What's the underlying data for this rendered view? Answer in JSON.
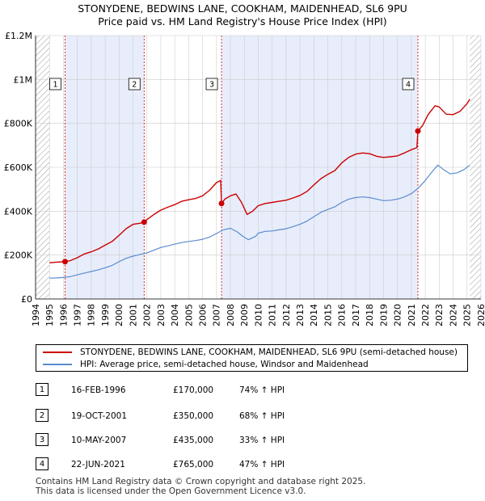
{
  "title_line1": "STONYDENE, BEDWINS LANE, COOKHAM, MAIDENHEAD, SL6 9PU",
  "title_line2": "Price paid vs. HM Land Registry's House Price Index (HPI)",
  "colors": {
    "property": "#cc0000",
    "hpi": "#5b8ccc",
    "shade": "#e8edfb",
    "hatch": "#999999",
    "grid": "#cccccc",
    "marker_dash": "#cc0000"
  },
  "legend": {
    "property_label": "STONYDENE, BEDWINS LANE, COOKHAM, MAIDENHEAD, SL6 9PU (semi-detached house)",
    "hpi_label": "HPI: Average price, semi-detached house, Windsor and Maidenhead"
  },
  "sales": [
    {
      "num": "1",
      "date": "16-FEB-1996",
      "price": "£170,000",
      "hpi": "74% ↑ HPI"
    },
    {
      "num": "2",
      "date": "19-OCT-2001",
      "price": "£350,000",
      "hpi": "68% ↑ HPI"
    },
    {
      "num": "3",
      "date": "10-MAY-2007",
      "price": "£435,000",
      "hpi": "33% ↑ HPI"
    },
    {
      "num": "4",
      "date": "22-JUN-2021",
      "price": "£765,000",
      "hpi": "47% ↑ HPI"
    }
  ],
  "footer_line1": "Contains HM Land Registry data © Crown copyright and database right 2025.",
  "footer_line2": "This data is licensed under the Open Government Licence v3.0.",
  "chart_data": {
    "type": "line",
    "title": "STONYDENE, BEDWINS LANE, COOKHAM, MAIDENHEAD, SL6 9PU",
    "subtitle": "Price paid vs. HM Land Registry's House Price Index (HPI)",
    "xlim": [
      1994,
      2026
    ],
    "ylim": [
      0,
      1200000
    ],
    "x_ticks": [
      1994,
      1995,
      1996,
      1997,
      1998,
      1999,
      2000,
      2001,
      2002,
      2003,
      2004,
      2005,
      2006,
      2007,
      2008,
      2009,
      2010,
      2011,
      2012,
      2013,
      2014,
      2015,
      2016,
      2017,
      2018,
      2019,
      2020,
      2021,
      2022,
      2023,
      2024,
      2025,
      2026
    ],
    "y_ticks": [
      {
        "value": 0,
        "label": "£0"
      },
      {
        "value": 200000,
        "label": "£200K"
      },
      {
        "value": 400000,
        "label": "£400K"
      },
      {
        "value": 600000,
        "label": "£600K"
      },
      {
        "value": 800000,
        "label": "£800K"
      },
      {
        "value": 1000000,
        "label": "£1M"
      },
      {
        "value": 1200000,
        "label": "£1.2M"
      }
    ],
    "data_start": 1995.0,
    "data_end": 2025.2,
    "sale_markers": [
      {
        "label": "1",
        "x": 1996.12,
        "y": 170000
      },
      {
        "label": "2",
        "x": 2001.8,
        "y": 350000
      },
      {
        "label": "3",
        "x": 2007.36,
        "y": 435000
      },
      {
        "label": "4",
        "x": 2021.47,
        "y": 765000
      }
    ],
    "series": [
      {
        "name": "STONYDENE, BEDWINS LANE, COOKHAM, MAIDENHEAD, SL6 9PU (semi-detached house)",
        "points": [
          [
            1995.0,
            165000
          ],
          [
            1995.5,
            168000
          ],
          [
            1996.12,
            170000
          ],
          [
            1996.5,
            175000
          ],
          [
            1997.0,
            188000
          ],
          [
            1997.5,
            205000
          ],
          [
            1998.0,
            215000
          ],
          [
            1998.5,
            228000
          ],
          [
            1999.0,
            245000
          ],
          [
            1999.5,
            262000
          ],
          [
            2000.0,
            290000
          ],
          [
            2000.5,
            320000
          ],
          [
            2001.0,
            340000
          ],
          [
            2001.5,
            345000
          ],
          [
            2001.8,
            350000
          ],
          [
            2002.0,
            362000
          ],
          [
            2002.5,
            385000
          ],
          [
            2003.0,
            405000
          ],
          [
            2003.5,
            418000
          ],
          [
            2004.0,
            430000
          ],
          [
            2004.5,
            445000
          ],
          [
            2005.0,
            452000
          ],
          [
            2005.5,
            458000
          ],
          [
            2006.0,
            470000
          ],
          [
            2006.5,
            495000
          ],
          [
            2007.0,
            530000
          ],
          [
            2007.3,
            540000
          ],
          [
            2007.36,
            435000
          ],
          [
            2007.6,
            455000
          ],
          [
            2008.0,
            470000
          ],
          [
            2008.4,
            478000
          ],
          [
            2008.8,
            440000
          ],
          [
            2009.2,
            385000
          ],
          [
            2009.6,
            400000
          ],
          [
            2010.0,
            425000
          ],
          [
            2010.5,
            435000
          ],
          [
            2011.0,
            440000
          ],
          [
            2011.5,
            445000
          ],
          [
            2012.0,
            450000
          ],
          [
            2012.5,
            460000
          ],
          [
            2013.0,
            472000
          ],
          [
            2013.5,
            490000
          ],
          [
            2014.0,
            520000
          ],
          [
            2014.5,
            548000
          ],
          [
            2015.0,
            568000
          ],
          [
            2015.5,
            585000
          ],
          [
            2016.0,
            620000
          ],
          [
            2016.5,
            645000
          ],
          [
            2017.0,
            660000
          ],
          [
            2017.5,
            665000
          ],
          [
            2018.0,
            662000
          ],
          [
            2018.5,
            650000
          ],
          [
            2019.0,
            645000
          ],
          [
            2019.5,
            648000
          ],
          [
            2020.0,
            652000
          ],
          [
            2020.5,
            665000
          ],
          [
            2021.0,
            680000
          ],
          [
            2021.4,
            690000
          ],
          [
            2021.47,
            765000
          ],
          [
            2021.8,
            790000
          ],
          [
            2022.2,
            840000
          ],
          [
            2022.7,
            880000
          ],
          [
            2023.0,
            875000
          ],
          [
            2023.5,
            842000
          ],
          [
            2024.0,
            840000
          ],
          [
            2024.5,
            855000
          ],
          [
            2025.0,
            890000
          ],
          [
            2025.2,
            910000
          ]
        ]
      },
      {
        "name": "HPI: Average price, semi-detached house, Windsor and Maidenhead",
        "points": [
          [
            1995.0,
            95000
          ],
          [
            1995.5,
            96000
          ],
          [
            1996.0,
            98000
          ],
          [
            1996.5,
            102000
          ],
          [
            1997.0,
            110000
          ],
          [
            1997.5,
            118000
          ],
          [
            1998.0,
            125000
          ],
          [
            1998.5,
            133000
          ],
          [
            1999.0,
            142000
          ],
          [
            1999.5,
            153000
          ],
          [
            2000.0,
            170000
          ],
          [
            2000.5,
            185000
          ],
          [
            2001.0,
            195000
          ],
          [
            2001.5,
            203000
          ],
          [
            2002.0,
            210000
          ],
          [
            2002.5,
            222000
          ],
          [
            2003.0,
            235000
          ],
          [
            2003.5,
            242000
          ],
          [
            2004.0,
            250000
          ],
          [
            2004.5,
            257000
          ],
          [
            2005.0,
            262000
          ],
          [
            2005.5,
            266000
          ],
          [
            2006.0,
            272000
          ],
          [
            2006.5,
            282000
          ],
          [
            2007.0,
            298000
          ],
          [
            2007.5,
            315000
          ],
          [
            2008.0,
            322000
          ],
          [
            2008.5,
            305000
          ],
          [
            2008.9,
            285000
          ],
          [
            2009.3,
            270000
          ],
          [
            2009.8,
            285000
          ],
          [
            2010.0,
            300000
          ],
          [
            2010.5,
            308000
          ],
          [
            2011.0,
            310000
          ],
          [
            2011.5,
            315000
          ],
          [
            2012.0,
            320000
          ],
          [
            2012.5,
            330000
          ],
          [
            2013.0,
            340000
          ],
          [
            2013.5,
            355000
          ],
          [
            2014.0,
            375000
          ],
          [
            2014.5,
            395000
          ],
          [
            2015.0,
            408000
          ],
          [
            2015.5,
            420000
          ],
          [
            2016.0,
            440000
          ],
          [
            2016.5,
            455000
          ],
          [
            2017.0,
            462000
          ],
          [
            2017.5,
            465000
          ],
          [
            2018.0,
            462000
          ],
          [
            2018.5,
            455000
          ],
          [
            2019.0,
            448000
          ],
          [
            2019.5,
            450000
          ],
          [
            2020.0,
            455000
          ],
          [
            2020.5,
            465000
          ],
          [
            2021.0,
            480000
          ],
          [
            2021.5,
            505000
          ],
          [
            2022.0,
            540000
          ],
          [
            2022.5,
            580000
          ],
          [
            2022.9,
            610000
          ],
          [
            2023.3,
            590000
          ],
          [
            2023.8,
            570000
          ],
          [
            2024.3,
            575000
          ],
          [
            2024.8,
            590000
          ],
          [
            2025.2,
            610000
          ]
        ]
      }
    ]
  }
}
